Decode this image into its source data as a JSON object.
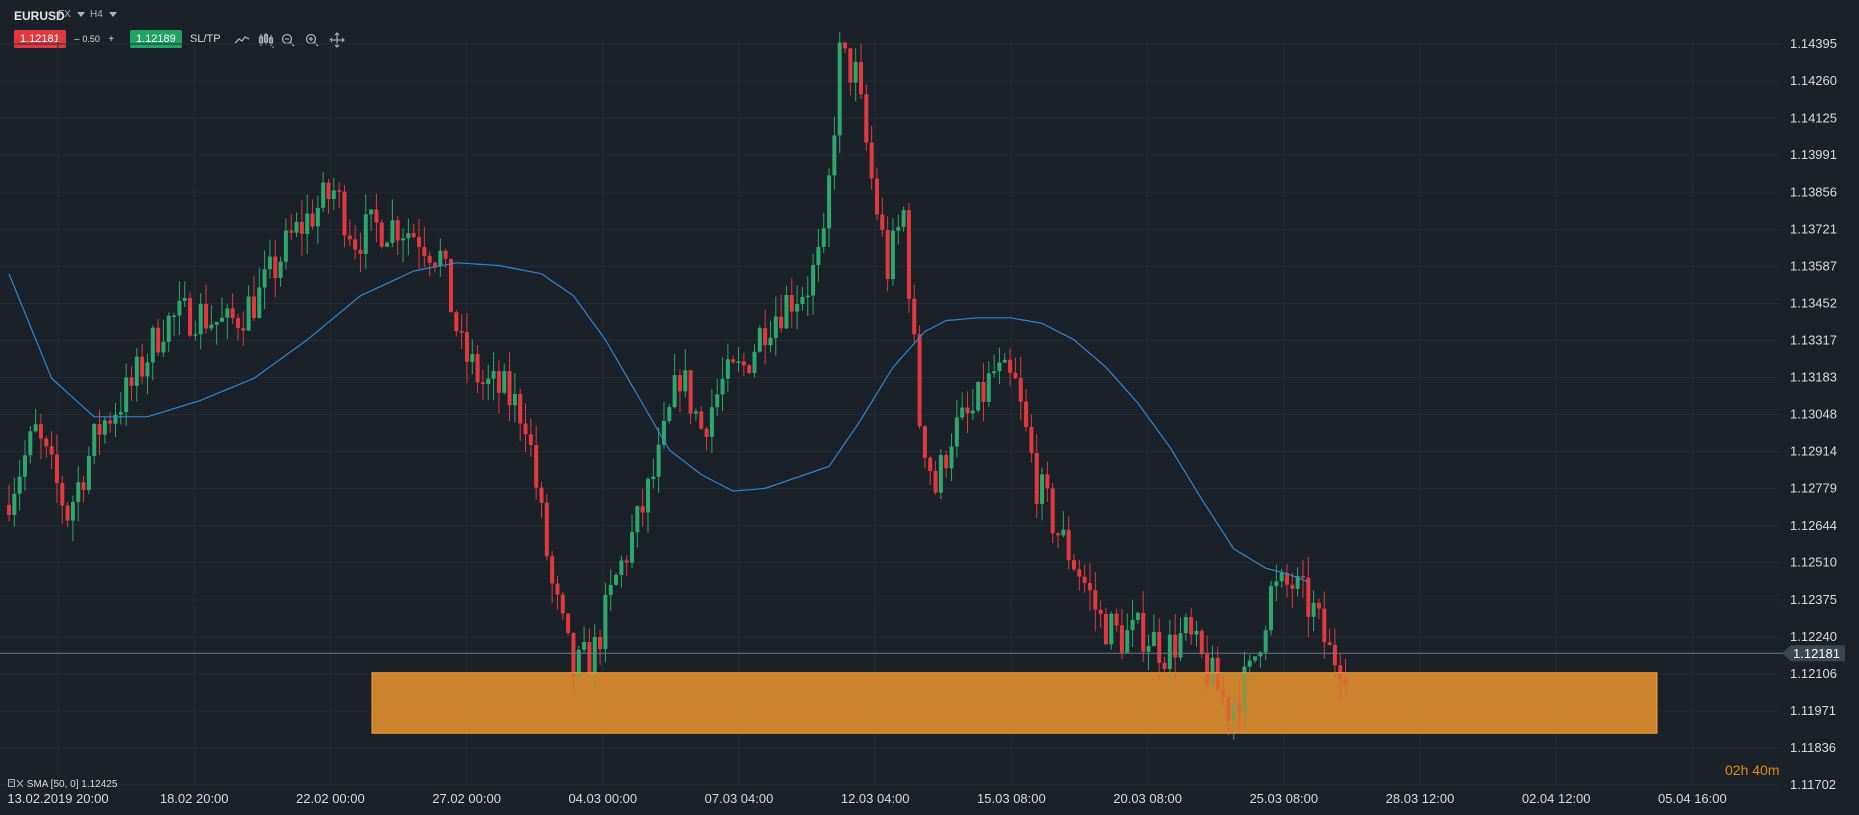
{
  "toolbar": {
    "symbol": "EURUSD",
    "market": "FX",
    "timeframe": "H4",
    "bid": "1.12181",
    "spread_minus": "–",
    "spread": "0.50",
    "spread_plus": "+",
    "ask": "1.12189",
    "sltp": "SL/TP",
    "icons": [
      "line-chart-icon",
      "candles-icon",
      "zoom-out-icon",
      "zoom-in-icon",
      "crosshair-icon"
    ]
  },
  "indicator_label": "SMA [50, 0] 1.12425",
  "countdown": {
    "h": "02h",
    "m": "40m"
  },
  "colors": {
    "background": "#1a2128",
    "up": "#2ea66c",
    "down": "#e03a40",
    "sma": "#2f86d6",
    "zone": "#d98b2b",
    "grid": "#232c34"
  },
  "chart_data": {
    "type": "candlestick",
    "symbol": "EURUSD",
    "timeframe": "H4",
    "y_ticks": [
      "1.14395",
      "1.14260",
      "1.14125",
      "1.13991",
      "1.13856",
      "1.13721",
      "1.13587",
      "1.13452",
      "1.13317",
      "1.13183",
      "1.13048",
      "1.12914",
      "1.12779",
      "1.12644",
      "1.12510",
      "1.12375",
      "1.12240",
      "1.12106",
      "1.11971",
      "1.11836",
      "1.11702"
    ],
    "ylim": [
      1.11702,
      1.14395
    ],
    "x_ticks": [
      "13.02.2019 20:00",
      "18.02 20:00",
      "22.02 00:00",
      "27.02 00:00",
      "04.03 00:00",
      "07.03 04:00",
      "12.03 04:00",
      "15.03 08:00",
      "20.03 08:00",
      "25.03 08:00",
      "28.03 12:00",
      "02.04 12:00",
      "05.04 16:00"
    ],
    "current_price": 1.12181,
    "current_price_label": "1.12181",
    "support_zone": {
      "low": 1.1189,
      "high": 1.1211
    },
    "close_keypoints": [
      [
        0,
        1.1272
      ],
      [
        6,
        1.1298
      ],
      [
        12,
        1.1269
      ],
      [
        18,
        1.13
      ],
      [
        24,
        1.1315
      ],
      [
        30,
        1.1338
      ],
      [
        36,
        1.1342
      ],
      [
        42,
        1.1337
      ],
      [
        48,
        1.1348
      ],
      [
        54,
        1.1369
      ],
      [
        58,
        1.1378
      ],
      [
        62,
        1.1386
      ],
      [
        66,
        1.1369
      ],
      [
        70,
        1.1373
      ],
      [
        74,
        1.1374
      ],
      [
        78,
        1.137
      ],
      [
        82,
        1.1362
      ],
      [
        86,
        1.1328
      ],
      [
        90,
        1.1316
      ],
      [
        94,
        1.1313
      ],
      [
        98,
        1.1304
      ],
      [
        103,
        1.1242
      ],
      [
        107,
        1.1211
      ],
      [
        111,
        1.1219
      ],
      [
        115,
        1.1245
      ],
      [
        119,
        1.1265
      ],
      [
        123,
        1.1288
      ],
      [
        127,
        1.132
      ],
      [
        131,
        1.13
      ],
      [
        135,
        1.1316
      ],
      [
        139,
        1.1322
      ],
      [
        143,
        1.1338
      ],
      [
        147,
        1.1346
      ],
      [
        151,
        1.1352
      ],
      [
        154,
        1.1365
      ],
      [
        157,
        1.1435
      ],
      [
        160,
        1.1428
      ],
      [
        163,
        1.139
      ],
      [
        166,
        1.1358
      ],
      [
        169,
        1.1378
      ],
      [
        172,
        1.1303
      ],
      [
        175,
        1.1278
      ],
      [
        178,
        1.1298
      ],
      [
        182,
        1.1305
      ],
      [
        186,
        1.132
      ],
      [
        190,
        1.1315
      ],
      [
        194,
        1.128
      ],
      [
        198,
        1.1262
      ],
      [
        202,
        1.1248
      ],
      [
        206,
        1.123
      ],
      [
        210,
        1.1224
      ],
      [
        214,
        1.1226
      ],
      [
        218,
        1.1219
      ],
      [
        222,
        1.1225
      ],
      [
        226,
        1.1212
      ],
      [
        230,
        1.1198
      ],
      [
        234,
        1.121
      ],
      [
        238,
        1.124
      ],
      [
        242,
        1.1243
      ],
      [
        246,
        1.1233
      ],
      [
        249,
        1.1218
      ],
      [
        252,
        1.1215
      ]
    ],
    "sma": {
      "name": "SMA [50, 0]",
      "value": 1.12425,
      "keypoints": [
        [
          0,
          1.1356
        ],
        [
          8,
          1.1318
        ],
        [
          16,
          1.1304
        ],
        [
          26,
          1.1304
        ],
        [
          36,
          1.131
        ],
        [
          46,
          1.1318
        ],
        [
          56,
          1.1332
        ],
        [
          66,
          1.1348
        ],
        [
          76,
          1.1357
        ],
        [
          84,
          1.136
        ],
        [
          92,
          1.1359
        ],
        [
          100,
          1.1356
        ],
        [
          106,
          1.1348
        ],
        [
          112,
          1.1332
        ],
        [
          118,
          1.1312
        ],
        [
          124,
          1.1292
        ],
        [
          130,
          1.1283
        ],
        [
          136,
          1.1277
        ],
        [
          142,
          1.1278
        ],
        [
          148,
          1.1282
        ],
        [
          154,
          1.1286
        ],
        [
          160,
          1.1303
        ],
        [
          166,
          1.1322
        ],
        [
          172,
          1.1335
        ],
        [
          176,
          1.1339
        ],
        [
          182,
          1.134
        ],
        [
          188,
          1.134
        ],
        [
          194,
          1.1338
        ],
        [
          200,
          1.1332
        ],
        [
          206,
          1.1322
        ],
        [
          212,
          1.1309
        ],
        [
          218,
          1.1293
        ],
        [
          224,
          1.1274
        ],
        [
          230,
          1.1256
        ],
        [
          236,
          1.1249
        ],
        [
          240,
          1.1247
        ],
        [
          244,
          1.1244
        ]
      ]
    }
  }
}
